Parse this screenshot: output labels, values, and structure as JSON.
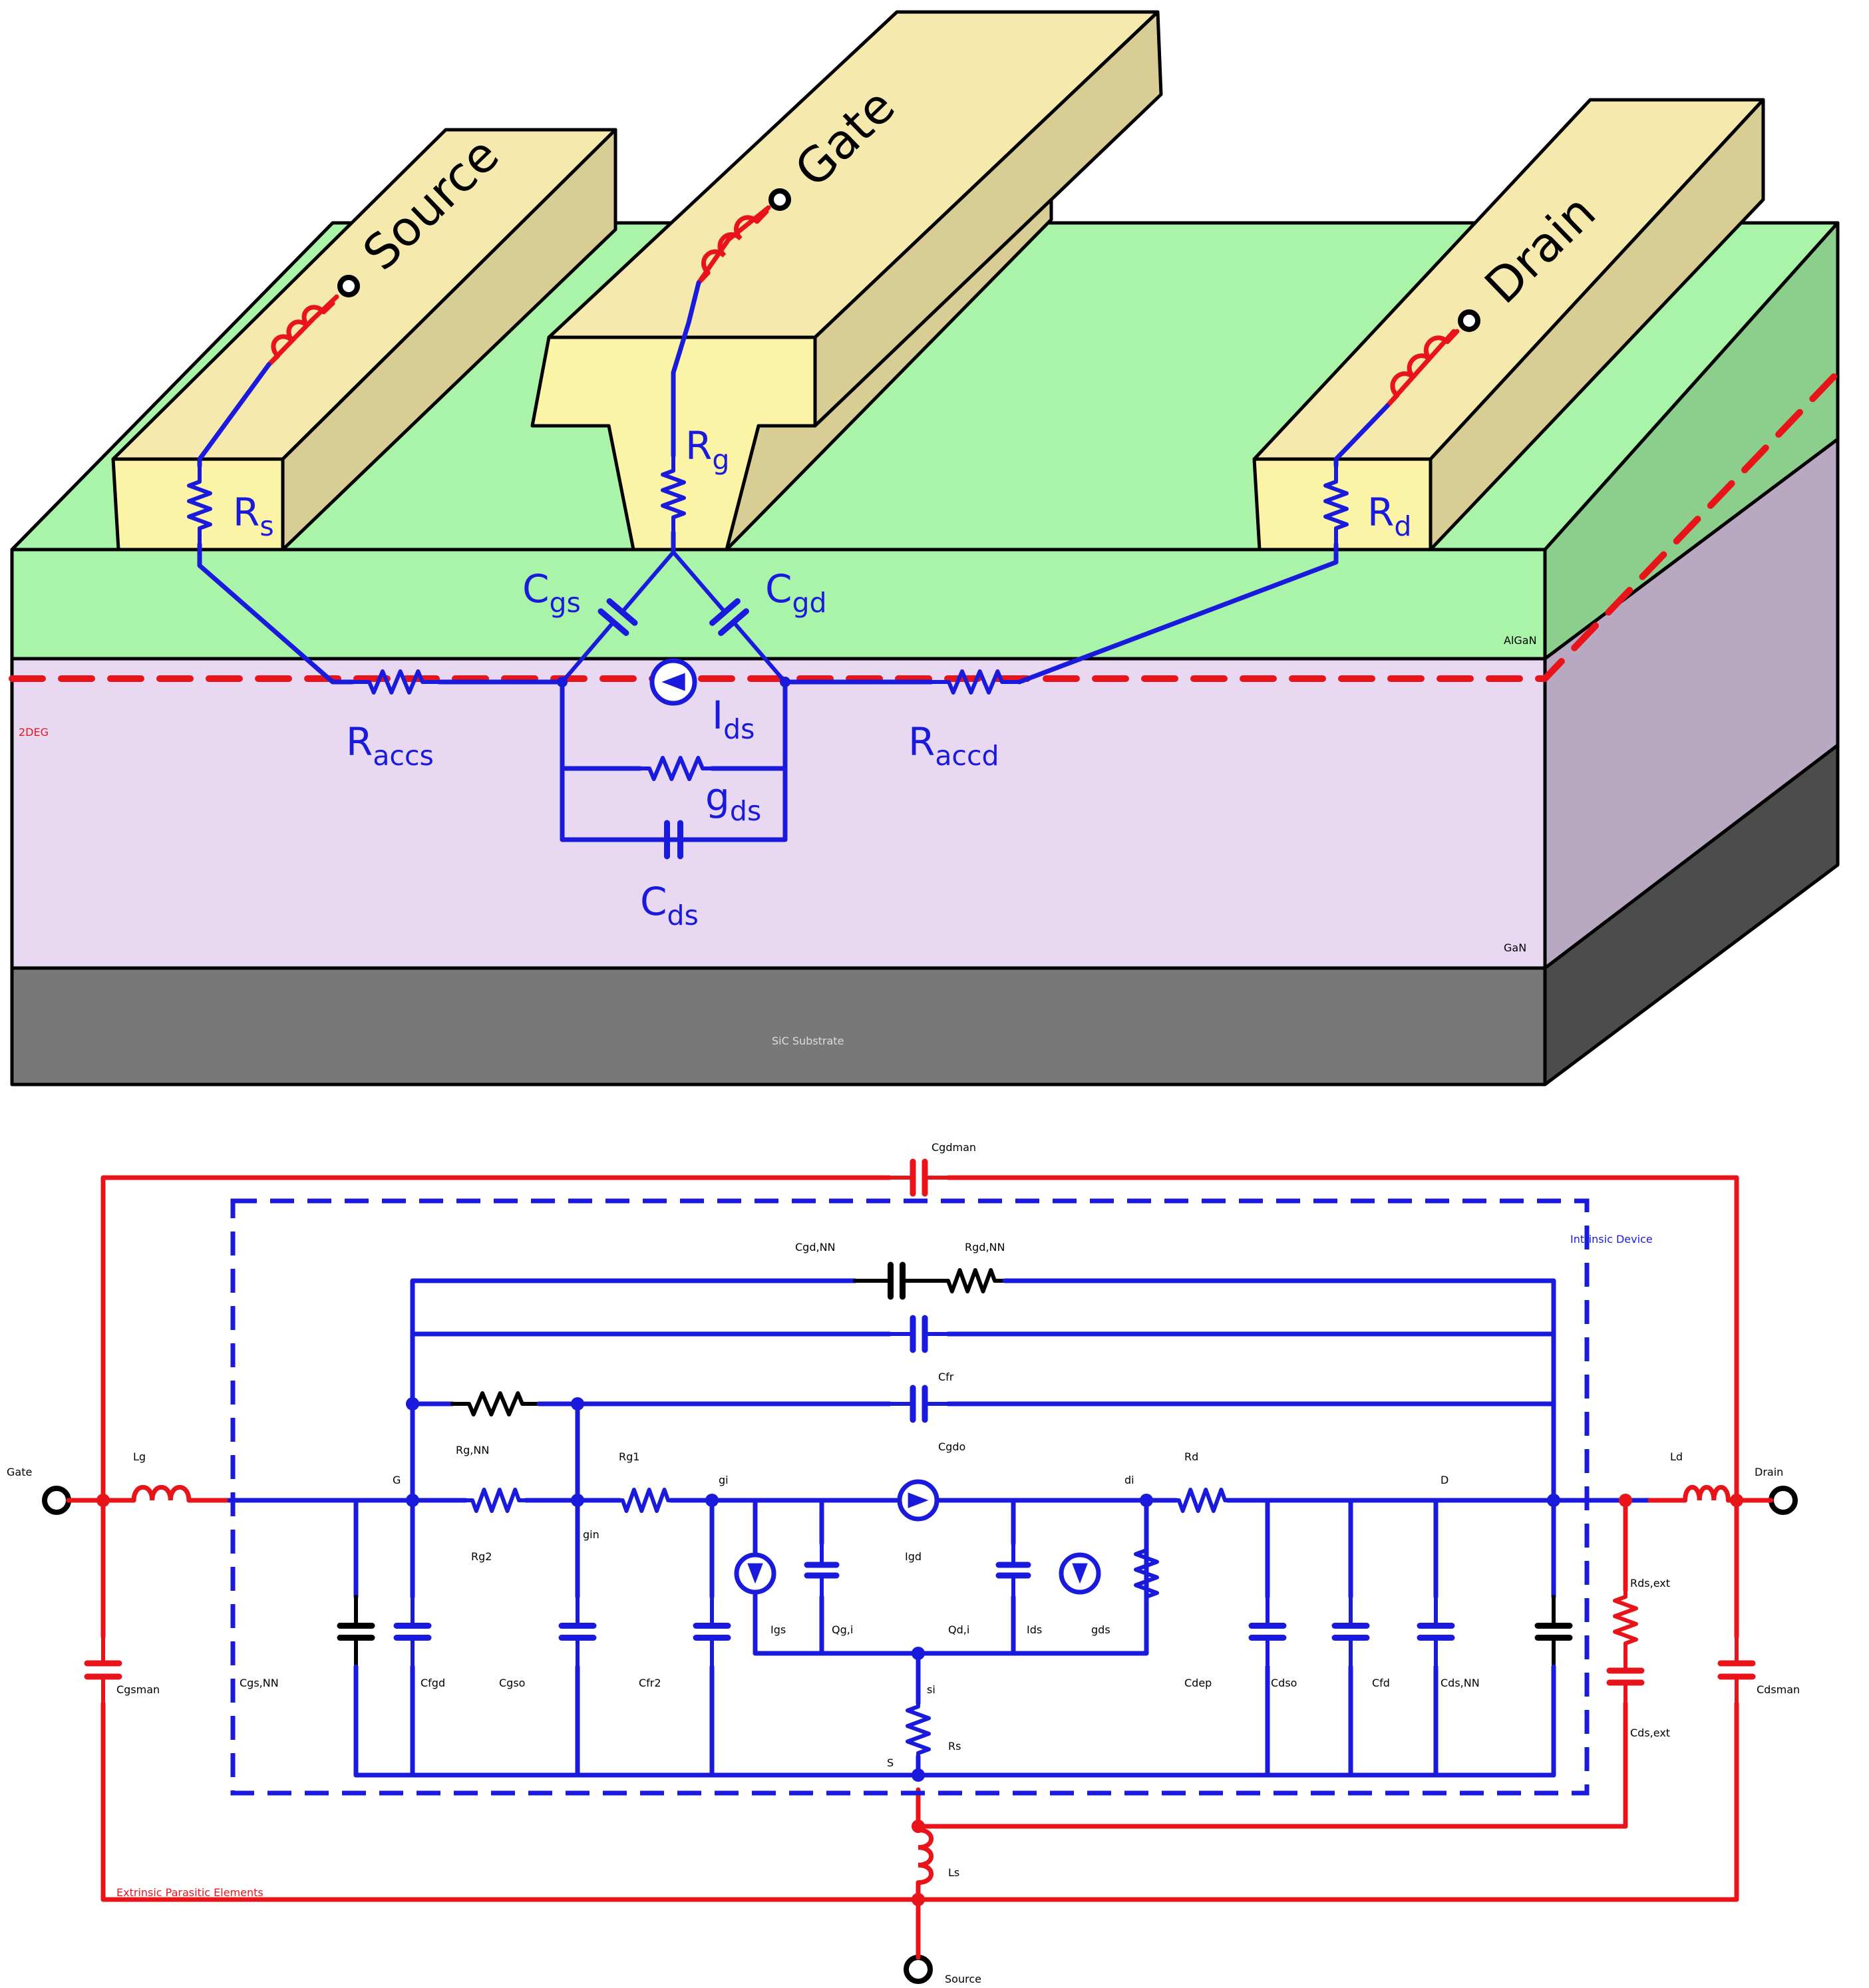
{
  "colors": {
    "blue": "#1a1adc",
    "red": "#e8141a",
    "black": "#000000",
    "contact_front": "#fbf3a6",
    "contact_top": "#f5e9ae",
    "contact_side": "#d8cd95",
    "algan_front": "#a9f4a9",
    "algan_side": "#8ccf8c",
    "gan_front": "#e8d8f2",
    "gan_side": "#b9a8c2",
    "sic_front": "#787878",
    "sic_side": "#4c4c4c",
    "sic_label": "#dcdcdc"
  },
  "device": {
    "terminals": {
      "source": "Source",
      "gate": "Gate",
      "drain": "Drain"
    },
    "layers": {
      "algan": "AlGaN",
      "gan": "GaN",
      "substrate": "SiC Substrate",
      "twodeg": "2DEG"
    },
    "elements": {
      "rs": {
        "main": "R",
        "sub": "s"
      },
      "rg": {
        "main": "R",
        "sub": "g"
      },
      "rd": {
        "main": "R",
        "sub": "d"
      },
      "cgs": {
        "main": "C",
        "sub": "gs"
      },
      "cgd": {
        "main": "C",
        "sub": "gd"
      },
      "raccs": {
        "main": "R",
        "sub": "accs"
      },
      "raccd": {
        "main": "R",
        "sub": "accd"
      },
      "ids": {
        "main": "I",
        "sub": "ds"
      },
      "gds": {
        "main": "g",
        "sub": "ds"
      },
      "cds": {
        "main": "C",
        "sub": "ds"
      }
    }
  },
  "circuit": {
    "ports": {
      "gate": "Gate",
      "drain": "Drain",
      "source": "Source"
    },
    "box_labels": {
      "intrinsic": "Intrinsic Device",
      "extrinsic": "Extrinsic Parasitic Elements"
    },
    "nodes": {
      "G": "G",
      "gin": "gin",
      "gi": "gi",
      "di": "di",
      "D": "D",
      "si": "si",
      "S": "S"
    },
    "elements": {
      "cgdman": {
        "main": "C",
        "sub": "gdman"
      },
      "lg": {
        "main": "L",
        "sub": "g"
      },
      "ld": {
        "main": "L",
        "sub": "d"
      },
      "ls": {
        "main": "L",
        "sub": "s"
      },
      "cgsman": {
        "main": "C",
        "sub": "gsman"
      },
      "cdsman": {
        "main": "C",
        "sub": "dsman"
      },
      "rdsext": {
        "main": "R",
        "sub": "ds,ext"
      },
      "cdsext": {
        "main": "C",
        "sub": "ds,ext"
      },
      "cgdnn": {
        "main": "C",
        "sub": "gd,NN"
      },
      "rgdnn": {
        "main": "R",
        "sub": "gd,NN"
      },
      "cfr": {
        "main": "C",
        "sub": "fr"
      },
      "rgnn": {
        "main": "R",
        "sub": "g,NN"
      },
      "cgdo": {
        "main": "C",
        "sub": "gdo"
      },
      "rg1": {
        "main": "R",
        "sub": "g1"
      },
      "rg2": {
        "main": "R",
        "sub": "g2"
      },
      "rd": {
        "main": "R",
        "sub": "d"
      },
      "igd": {
        "main": "I",
        "sub": "gd"
      },
      "igs": {
        "main": "I",
        "sub": "gs"
      },
      "qgi": {
        "main": "Q",
        "sub": "g,i"
      },
      "qdi": {
        "main": "Q",
        "sub": "d,i"
      },
      "ids": {
        "main": "I",
        "sub": "ds"
      },
      "gds": {
        "main": "g",
        "sub": "ds"
      },
      "cgsnn": {
        "main": "C",
        "sub": "gs,NN"
      },
      "cfgd": {
        "main": "C",
        "sub": "fgd"
      },
      "cgso": {
        "main": "C",
        "sub": "gso"
      },
      "cfr2": {
        "main": "C",
        "sub": "fr2"
      },
      "rs": {
        "main": "R",
        "sub": "s"
      },
      "cdep": {
        "main": "C",
        "sub": "dep"
      },
      "cdso": {
        "main": "C",
        "sub": "dso"
      },
      "cfd": {
        "main": "C",
        "sub": "fd"
      },
      "cdsnn": {
        "main": "C",
        "sub": "ds,NN"
      }
    }
  }
}
